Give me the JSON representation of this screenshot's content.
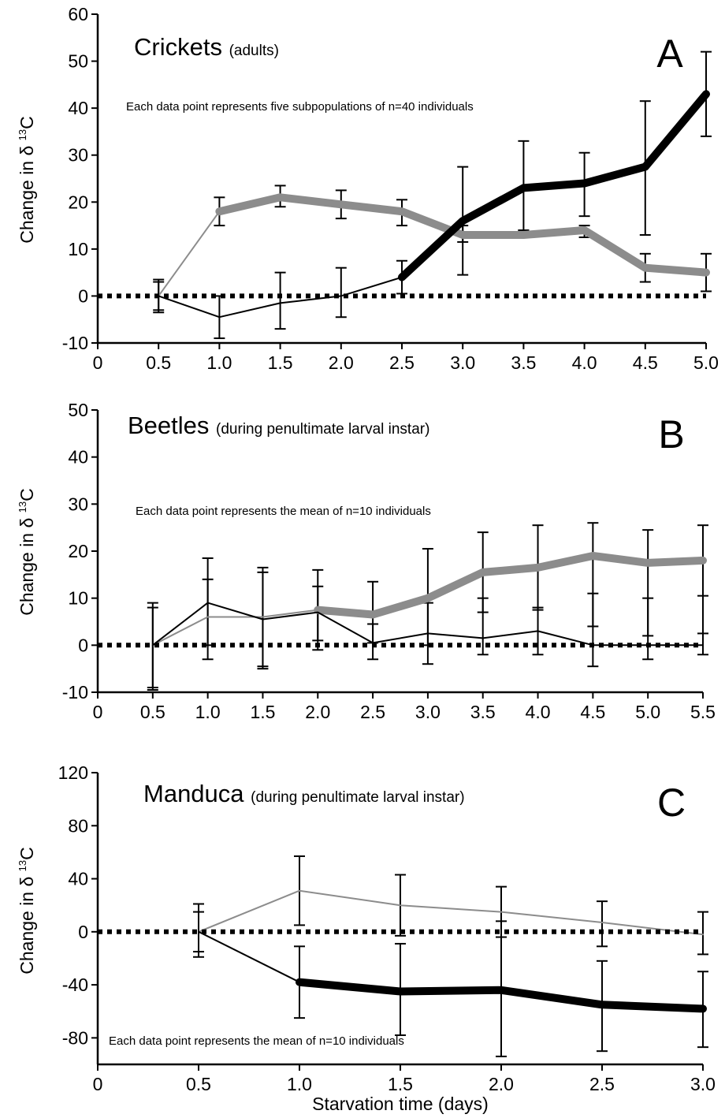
{
  "chart_data": [
    {
      "type": "line",
      "panel_label": "A",
      "title": "Crickets",
      "subtitle": "(adults)",
      "annotation": "Each data point represents five subpopulations of n=40 individuals",
      "ylabel": "Change in δ 13 C",
      "ylabel_parts": [
        "Change in δ ",
        "13",
        "C"
      ],
      "xlabel": "",
      "ylim": [
        -10,
        60
      ],
      "xlim": [
        0,
        5.0
      ],
      "yticks": [
        -10,
        0,
        10,
        20,
        30,
        40,
        50,
        60
      ],
      "xticks": [
        "0",
        "0.5",
        "1.0",
        "1.5",
        "2.0",
        "2.5",
        "3.0",
        "3.5",
        "4.0",
        "4.5",
        "5.0"
      ],
      "series": [
        {
          "color": "#8c8c8c",
          "style": "thin",
          "x": [
            0.5,
            1.0
          ],
          "y": [
            0,
            18
          ]
        },
        {
          "color": "#8c8c8c",
          "style": "thick",
          "x": [
            1.0,
            1.5,
            2.0,
            2.5,
            3.0,
            3.5,
            4.0,
            4.5,
            5.0
          ],
          "y": [
            18,
            21,
            19.5,
            18,
            13,
            13,
            14,
            6,
            5
          ]
        },
        {
          "color": "#000000",
          "style": "thin",
          "x": [
            0.5,
            1.0,
            1.5,
            2.0,
            2.5
          ],
          "y": [
            0,
            -4.5,
            -1.5,
            0,
            4
          ]
        },
        {
          "color": "#000000",
          "style": "thick",
          "x": [
            2.5,
            3.0,
            3.5,
            4.0,
            4.5,
            5.0
          ],
          "y": [
            4,
            16,
            23,
            24,
            27.5,
            43
          ]
        },
        {
          "color": "#000000",
          "style": "dotted",
          "x": [
            0,
            5.0
          ],
          "y": [
            0,
            0
          ]
        }
      ],
      "error_bars": [
        {
          "x": 0.5,
          "low": -3.5,
          "high": 3.5
        },
        {
          "x": 0.5,
          "low": -3,
          "high": 3
        },
        {
          "x": 1.0,
          "low": 15,
          "high": 21
        },
        {
          "x": 1.0,
          "low": -9,
          "high": 0
        },
        {
          "x": 1.5,
          "low": 19,
          "high": 23.5
        },
        {
          "x": 1.5,
          "low": -7,
          "high": 5
        },
        {
          "x": 2.0,
          "low": 16.5,
          "high": 22.5
        },
        {
          "x": 2.0,
          "low": -4.5,
          "high": 6
        },
        {
          "x": 2.5,
          "low": 15,
          "high": 20.5
        },
        {
          "x": 2.5,
          "low": 0.5,
          "high": 7.5
        },
        {
          "x": 3.0,
          "low": 4.5,
          "high": 27.5
        },
        {
          "x": 3.0,
          "low": 11.5,
          "high": 15
        },
        {
          "x": 3.5,
          "low": 14,
          "high": 33
        },
        {
          "x": 3.5,
          "low": 12.5,
          "high": 14
        },
        {
          "x": 4.0,
          "low": 17,
          "high": 30.5
        },
        {
          "x": 4.0,
          "low": 12.5,
          "high": 15
        },
        {
          "x": 4.5,
          "low": 13,
          "high": 41.5
        },
        {
          "x": 4.5,
          "low": 3,
          "high": 9
        },
        {
          "x": 5.0,
          "low": 34,
          "high": 52
        },
        {
          "x": 5.0,
          "low": 1,
          "high": 9
        }
      ]
    },
    {
      "type": "line",
      "panel_label": "B",
      "title": "Beetles",
      "subtitle": "(during penultimate larval instar)",
      "annotation": "Each data point represents the mean of n=10 individuals",
      "ylabel": "Change in δ 13 C",
      "ylabel_parts": [
        "Change in δ ",
        "13",
        "C"
      ],
      "xlabel": "",
      "ylim": [
        -10,
        50
      ],
      "xlim": [
        0,
        5.5
      ],
      "yticks": [
        -10,
        0,
        10,
        20,
        30,
        40,
        50
      ],
      "xticks": [
        "0",
        "0.5",
        "1.0",
        "1.5",
        "2.0",
        "2.5",
        "3.0",
        "3.5",
        "4.0",
        "4.5",
        "5.0",
        "5.5"
      ],
      "series": [
        {
          "color": "#8c8c8c",
          "style": "thin",
          "x": [
            0.5,
            1.0,
            1.5,
            2.0
          ],
          "y": [
            0,
            6,
            6,
            7.5
          ]
        },
        {
          "color": "#8c8c8c",
          "style": "thick",
          "x": [
            2.0,
            2.5,
            3.0,
            3.5,
            4.0,
            4.5,
            5.0,
            5.5
          ],
          "y": [
            7.5,
            6.5,
            10,
            15.5,
            16.5,
            19,
            17.5,
            18
          ]
        },
        {
          "color": "#000000",
          "style": "thin",
          "x": [
            0.5,
            1.0,
            1.5,
            2.0,
            2.5,
            3.0,
            3.5,
            4.0,
            4.5,
            5.0,
            5.5
          ],
          "y": [
            0,
            9,
            5.5,
            7,
            0.5,
            2.5,
            1.5,
            3,
            0,
            0,
            0
          ]
        },
        {
          "color": "#000000",
          "style": "dotted",
          "x": [
            0,
            5.5
          ],
          "y": [
            0,
            0
          ]
        }
      ],
      "error_bars": [
        {
          "x": 0.5,
          "low": -9,
          "high": 9
        },
        {
          "x": 0.5,
          "low": -9.5,
          "high": 8
        },
        {
          "x": 1.0,
          "low": -3,
          "high": 18.5
        },
        {
          "x": 1.0,
          "low": 0,
          "high": 14
        },
        {
          "x": 1.5,
          "low": -5,
          "high": 16.5
        },
        {
          "x": 1.5,
          "low": -4.5,
          "high": 15.5
        },
        {
          "x": 2.0,
          "low": -1,
          "high": 16
        },
        {
          "x": 2.0,
          "low": 1,
          "high": 12.5
        },
        {
          "x": 2.5,
          "low": -3,
          "high": 13.5
        },
        {
          "x": 2.5,
          "low": 0.5,
          "high": 4.5
        },
        {
          "x": 3.0,
          "low": -4,
          "high": 20.5
        },
        {
          "x": 3.0,
          "low": 0,
          "high": 9
        },
        {
          "x": 3.5,
          "low": -2,
          "high": 24
        },
        {
          "x": 3.5,
          "low": 7,
          "high": 10
        },
        {
          "x": 4.0,
          "low": -2,
          "high": 25.5
        },
        {
          "x": 4.0,
          "low": 7.5,
          "high": 8
        },
        {
          "x": 4.5,
          "low": -4.5,
          "high": 26
        },
        {
          "x": 4.5,
          "low": 4,
          "high": 11
        },
        {
          "x": 5.0,
          "low": -3,
          "high": 24.5
        },
        {
          "x": 5.0,
          "low": 2,
          "high": 10
        },
        {
          "x": 5.5,
          "low": -2,
          "high": 25.5
        },
        {
          "x": 5.5,
          "low": 2.5,
          "high": 10.5
        }
      ]
    },
    {
      "type": "line",
      "panel_label": "C",
      "title": "Manduca",
      "subtitle": "(during penultimate larval instar)",
      "annotation": "Each data point represents the mean of n=10 individuals",
      "ylabel": "Change in δ 13 C",
      "ylabel_parts": [
        "Change in δ ",
        "13",
        "C"
      ],
      "xlabel": "Starvation time (days)",
      "ylim": [
        -100,
        120
      ],
      "xlim": [
        0,
        3.0
      ],
      "yticks": [
        -80,
        -40,
        0,
        40,
        80,
        120
      ],
      "xticks": [
        "0",
        "0.5",
        "1.0",
        "1.5",
        "2.0",
        "2.5",
        "3.0"
      ],
      "series": [
        {
          "color": "#8c8c8c",
          "style": "thin",
          "x": [
            0.5,
            1.0,
            1.5,
            2.0,
            2.5,
            3.0
          ],
          "y": [
            0,
            31,
            20,
            15,
            7,
            -2
          ]
        },
        {
          "color": "#000000",
          "style": "thin",
          "x": [
            0.5,
            1.0
          ],
          "y": [
            0,
            -38
          ]
        },
        {
          "color": "#000000",
          "style": "thick",
          "x": [
            1.0,
            1.5,
            2.0,
            2.5,
            3.0
          ],
          "y": [
            -38,
            -45,
            -44,
            -55,
            -58
          ]
        },
        {
          "color": "#000000",
          "style": "dotted",
          "x": [
            0,
            3.0
          ],
          "y": [
            0,
            0
          ]
        }
      ],
      "error_bars": [
        {
          "x": 0.5,
          "low": -19,
          "high": 21
        },
        {
          "x": 0.5,
          "low": -15,
          "high": 15
        },
        {
          "x": 1.0,
          "low": 5,
          "high": 57
        },
        {
          "x": 1.0,
          "low": -65,
          "high": -11
        },
        {
          "x": 1.5,
          "low": -3,
          "high": 43
        },
        {
          "x": 1.5,
          "low": -78,
          "high": -9
        },
        {
          "x": 2.0,
          "low": -4,
          "high": 34
        },
        {
          "x": 2.0,
          "low": -94,
          "high": 8
        },
        {
          "x": 2.5,
          "low": -11,
          "high": 23
        },
        {
          "x": 2.5,
          "low": -90,
          "high": -22
        },
        {
          "x": 3.0,
          "low": -17,
          "high": 15
        },
        {
          "x": 3.0,
          "low": -87,
          "high": -30
        }
      ]
    }
  ]
}
